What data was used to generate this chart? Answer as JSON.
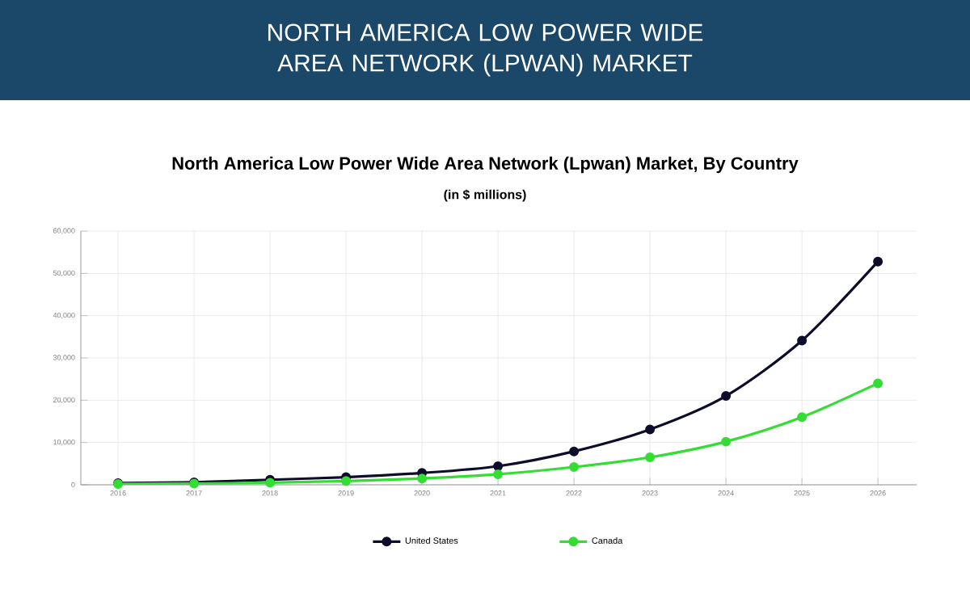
{
  "chart_data": {
    "type": "line",
    "title": "NORTH AMERICA LOW POWER WIDE AREA NETWORK (LPWAN) MARKET",
    "subtitle": "North America Low Power Wide Area Network (Lpwan) Market, By Country",
    "annotations": [
      "(in $ millions)"
    ],
    "categories": [
      "2016",
      "2017",
      "2018",
      "2019",
      "2020",
      "2021",
      "2022",
      "2023",
      "2024",
      "2025",
      "2026"
    ],
    "series": [
      {
        "name": "United States",
        "color": "#0d0d2b",
        "values": [
          400,
          600,
          1200,
          1800,
          2800,
          4400,
          7900,
          13100,
          21000,
          34100,
          52800
        ]
      },
      {
        "name": "Canada",
        "color": "#33dd33",
        "values": [
          200,
          300,
          500,
          900,
          1500,
          2500,
          4200,
          6500,
          10200,
          16000,
          24000
        ]
      }
    ],
    "ylim": [
      0,
      60000
    ],
    "yticks": [
      {
        "value": 0,
        "label": "0"
      },
      {
        "value": 10000,
        "label": "10,000"
      },
      {
        "value": 20000,
        "label": "20,000"
      },
      {
        "value": 30000,
        "label": "30,000"
      },
      {
        "value": 40000,
        "label": "40,000"
      },
      {
        "value": 50000,
        "label": "50,000"
      },
      {
        "value": 60000,
        "label": "60,000"
      }
    ],
    "grid": true,
    "legend": "bottom",
    "marker": "circle",
    "line_style": "solid"
  }
}
